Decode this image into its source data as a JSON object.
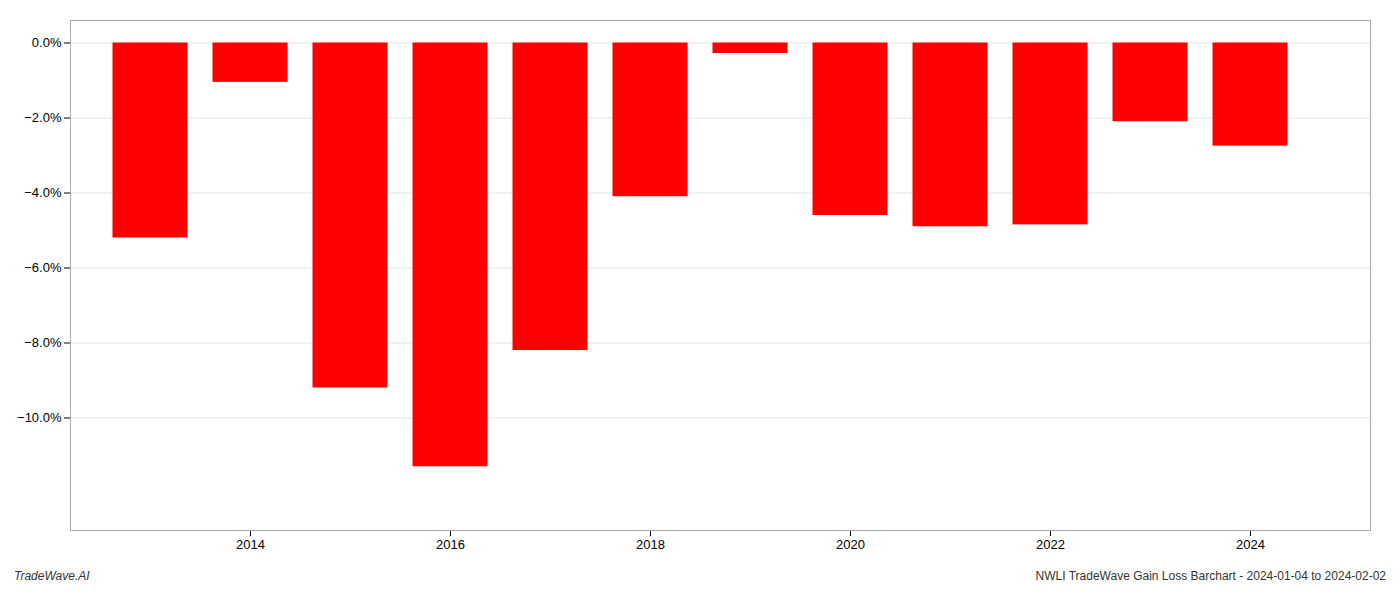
{
  "chart_data": {
    "type": "bar",
    "x": [
      2013,
      2014,
      2015,
      2016,
      2017,
      2018,
      2019,
      2020,
      2021,
      2022,
      2023,
      2024
    ],
    "values": [
      -5.2,
      -1.05,
      -9.2,
      -11.3,
      -8.2,
      -4.1,
      -0.28,
      -4.6,
      -4.9,
      -4.85,
      -2.1,
      -2.75
    ],
    "color": "#ff0000",
    "xlim": [
      2012.2,
      2025.2
    ],
    "xticks": [
      2014,
      2016,
      2018,
      2020,
      2022,
      2024
    ],
    "ylim": [
      -13.0,
      0.6
    ],
    "yticks": [
      {
        "value": 0.0,
        "label": "0.0%"
      },
      {
        "value": -2.0,
        "label": "−2.0%"
      },
      {
        "value": -4.0,
        "label": "−4.0%"
      },
      {
        "value": -6.0,
        "label": "−6.0%"
      },
      {
        "value": -8.0,
        "label": "−8.0%"
      },
      {
        "value": -10.0,
        "label": "−10.0%"
      }
    ],
    "grid": true,
    "annotations": [
      "TradeWave.AI",
      "NWLI TradeWave Gain Loss Barchart - 2024-01-04 to 2024-02-02"
    ]
  }
}
